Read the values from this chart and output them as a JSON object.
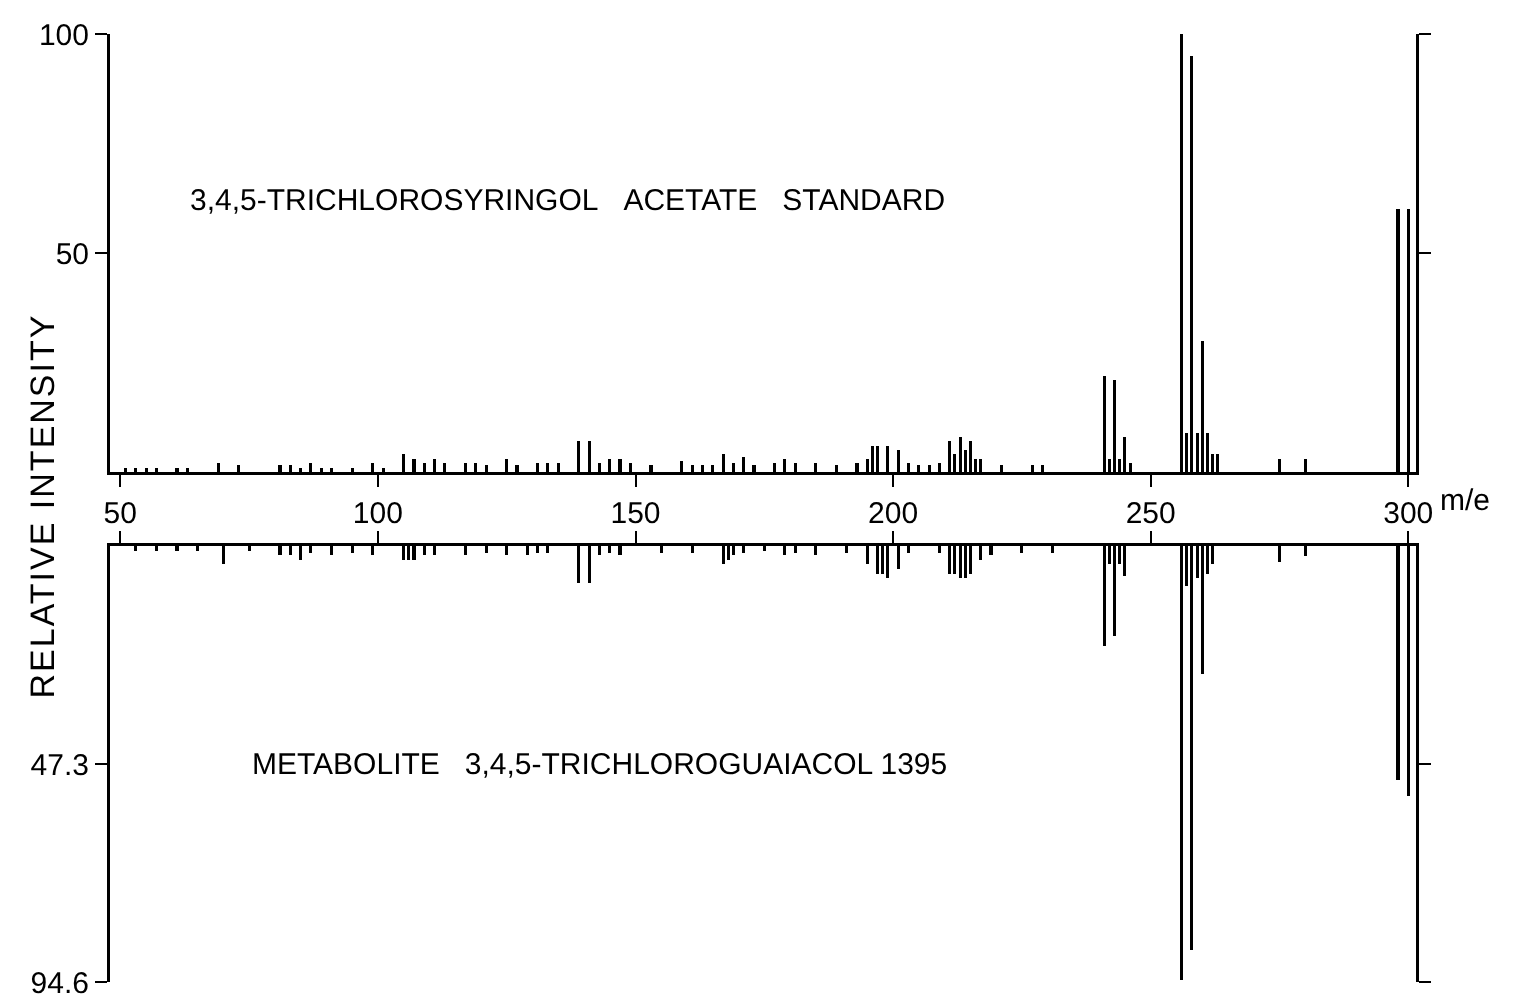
{
  "chart_data": [
    {
      "type": "bar",
      "xlabel": "m/e",
      "ylabel": "RELATIVE INTENSITY",
      "annotations": [
        "3,4,5-TRICHLOROSYRINGOL  ACETATE  STANDARD"
      ],
      "color": "#000000",
      "xlim": [
        48,
        301.5
      ],
      "xticks": [
        50,
        100,
        150,
        200,
        250,
        300
      ],
      "ylim": [
        0,
        100
      ],
      "yticks": [
        50,
        100
      ],
      "x": [
        51,
        53,
        55,
        57,
        61,
        63,
        69,
        73,
        81,
        83,
        85,
        87,
        89,
        91,
        95,
        99,
        101,
        105,
        107,
        109,
        111,
        113,
        117,
        119,
        121,
        125,
        127,
        131,
        133,
        135,
        139,
        141,
        143,
        145,
        147,
        149,
        153,
        159,
        161,
        163,
        165,
        167,
        169,
        171,
        173,
        177,
        179,
        181,
        185,
        189,
        193,
        195,
        196,
        197,
        199,
        201,
        203,
        205,
        207,
        209,
        211,
        212,
        213,
        214,
        215,
        216,
        217,
        221,
        227,
        229,
        241,
        242,
        243,
        244,
        245,
        246,
        256,
        257,
        258,
        259,
        260,
        261,
        262,
        263,
        275,
        280,
        298,
        300
      ],
      "values": [
        1,
        1,
        1,
        1,
        1,
        1,
        2,
        1.5,
        1.5,
        1.5,
        1,
        2,
        1,
        1,
        1,
        2,
        1,
        4,
        3,
        2,
        3,
        2,
        2,
        2,
        1.5,
        3,
        1.5,
        2,
        2,
        2,
        7,
        7,
        2,
        3,
        3,
        2,
        1.5,
        2.5,
        1.5,
        1.5,
        1.5,
        4,
        2,
        3.5,
        1.5,
        2,
        3,
        2,
        2,
        1.5,
        2,
        3,
        6,
        6,
        6,
        5,
        2,
        1.5,
        1.5,
        2,
        7,
        4,
        8,
        5,
        7,
        3,
        3,
        1.5,
        1.5,
        1.5,
        22,
        3,
        21,
        3,
        8,
        2,
        100,
        9,
        95,
        9,
        30,
        9,
        4,
        4,
        3,
        3,
        60,
        60
      ]
    },
    {
      "type": "bar",
      "annotations": [
        "METABOLITE  3,4,5-TRICHLOROGUAIACOL 1395"
      ],
      "color": "#000000",
      "tick_labels": "y",
      "xlim": [
        48,
        301.5
      ],
      "xticks": [
        50,
        100,
        150,
        200,
        250,
        300
      ],
      "ylim": [
        94.6,
        0
      ],
      "yticks": [
        47.3,
        94.6
      ],
      "x": [
        53,
        57,
        61,
        65,
        70,
        75,
        81,
        83,
        85,
        87,
        91,
        95,
        99,
        105,
        106,
        107,
        109,
        111,
        117,
        121,
        125,
        129,
        131,
        133,
        139,
        141,
        143,
        145,
        147,
        155,
        161,
        167,
        168,
        169,
        171,
        175,
        179,
        181,
        185,
        191,
        195,
        197,
        198,
        199,
        201,
        203,
        209,
        211,
        212,
        213,
        214,
        215,
        217,
        219,
        225,
        231,
        241,
        242,
        243,
        244,
        245,
        256,
        257,
        258,
        259,
        260,
        261,
        262,
        275,
        280,
        298,
        300
      ],
      "values": [
        1,
        1,
        1,
        1,
        4,
        1,
        2,
        2,
        3,
        1.5,
        2,
        1.5,
        2,
        3,
        3,
        3,
        2,
        2,
        2,
        1.5,
        2,
        2,
        1.5,
        1.5,
        8,
        8,
        2,
        1.5,
        2,
        1.5,
        1.5,
        4,
        3,
        2,
        1.5,
        1,
        2,
        1.5,
        2,
        1.5,
        4,
        6,
        6,
        7,
        5,
        1.5,
        1.5,
        6,
        6,
        7,
        7,
        6,
        3,
        2,
        1.5,
        1.5,
        21.7,
        4,
        19.5,
        4,
        6.5,
        94.2,
        8.7,
        87.7,
        7,
        27.8,
        6,
        4,
        3.5,
        2.2,
        50.8,
        54.3
      ]
    }
  ]
}
